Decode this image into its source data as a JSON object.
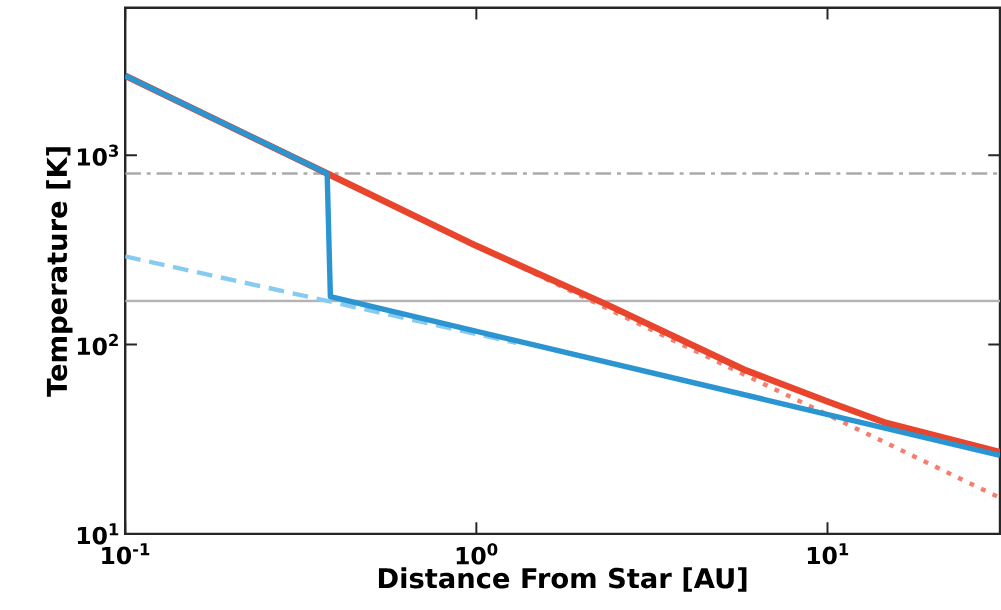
{
  "chart_data": {
    "type": "line",
    "xlabel": "Distance From Star [AU]",
    "ylabel": "Temperature [K]",
    "log": "xy",
    "xlim": [
      0.1,
      31
    ],
    "ylim": [
      10,
      6000
    ],
    "xticks": [
      {
        "value": 0.1,
        "label": "10$^{-1}$"
      },
      {
        "value": 1,
        "label": "10$^{0}$"
      },
      {
        "value": 10,
        "label": "10$^{1}$"
      }
    ],
    "yticks": [
      {
        "value": 10,
        "label": "10$^{1}$"
      },
      {
        "value": 100,
        "label": "10$^{2}$"
      },
      {
        "value": 1000,
        "label": "10$^{3}$"
      }
    ],
    "grid": false,
    "marker": "none",
    "ref_lines": [
      {
        "axis": "y",
        "value": 800,
        "color": "#aaaaaa",
        "line_style": "dashdot"
      },
      {
        "axis": "y",
        "value": 170,
        "color": "#b4b4b4",
        "line_style": "solid"
      }
    ],
    "series": [
      {
        "color": "#f47f70",
        "line_style": "dotted",
        "x": [
          0.376,
          31
        ],
        "values": [
          800,
          15.5
        ]
      },
      {
        "color": "#e8452c",
        "line_style": "solid",
        "x": [
          0.1,
          0.376,
          1,
          2.38,
          5.86,
          10,
          14.7,
          31
        ],
        "values": [
          2630,
          800,
          332,
          161,
          73,
          50,
          38.5,
          27
        ]
      },
      {
        "color": "#88cbf0",
        "line_style": "dashed",
        "x": [
          0.1,
          0.376,
          1.3
        ],
        "values": [
          292,
          170,
          102
        ]
      },
      {
        "color": "#2b95d1",
        "line_style": "solid",
        "x": [
          0.1,
          0.376,
          0.384,
          31
        ],
        "values": [
          2630,
          800,
          179,
          26
        ]
      }
    ]
  }
}
